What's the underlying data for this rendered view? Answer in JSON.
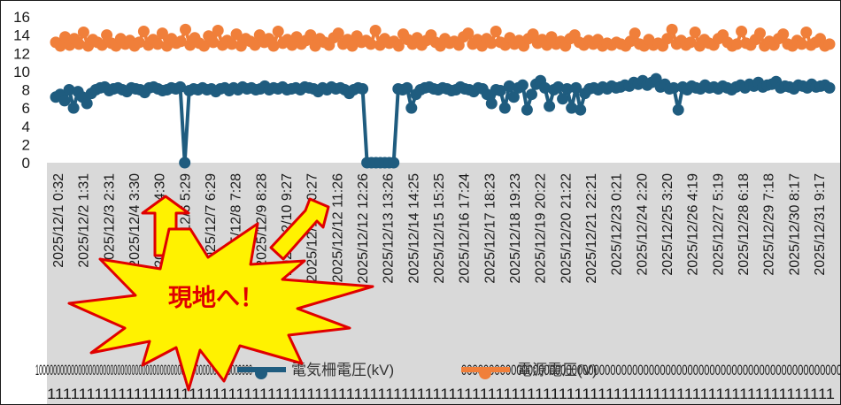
{
  "chart_data": {
    "type": "line",
    "yticks": [
      "16",
      "14",
      "12",
      "10",
      "8",
      "6",
      "4",
      "2",
      "0"
    ],
    "ylim": [
      0,
      16
    ],
    "xtick_labels": [
      "2025/12/1 0:32",
      "2025/12/2 1:31",
      "2025/12/3 2:31",
      "2025/12/4 3:30",
      "2025/12/5 4:30",
      "2025/12/6 5:29",
      "2025/12/7 6:29",
      "2025/12/8 7:28",
      "2025/12/9 8:28",
      "2025/12/10 9:27",
      "2025/12/11 10:27",
      "2025/12/12 11:26",
      "2025/12/12 12:26",
      "2025/12/13 13:26",
      "2025/12/14 14:25",
      "2025/12/15 15:25",
      "2025/12/16 17:24",
      "2025/12/17 18:23",
      "2025/12/18 19:23",
      "2025/12/19 20:22",
      "2025/12/20 21:22",
      "2025/12/21 22:21",
      "2025/12/23 0:21",
      "2025/12/24 2:20",
      "2025/12/25 3:20",
      "2025/12/26 4:19",
      "2025/12/27 5:19",
      "2025/12/28 6:18",
      "2025/12/29 7:18",
      "2025/12/30 8:17",
      "2025/12/31 9:17"
    ],
    "series": [
      {
        "name": "電気柵電圧(kV)",
        "color": "#1f5c7f",
        "values": [
          7.2,
          7.5,
          6.8,
          8.0,
          6.0,
          7.8,
          7.2,
          6.5,
          7.6,
          8.0,
          8.2,
          8.3,
          7.9,
          8.1,
          8.2,
          8.0,
          7.8,
          8.2,
          8.1,
          8.0,
          7.7,
          8.2,
          8.3,
          8.1,
          7.9,
          8.0,
          8.2,
          8.1,
          8.3,
          0.0,
          7.9,
          8.1,
          8.0,
          8.2,
          8.0,
          8.1,
          7.8,
          8.1,
          8.2,
          7.9,
          8.2,
          8.0,
          8.3,
          8.1,
          8.2,
          8.0,
          8.1,
          8.4,
          8.0,
          8.2,
          8.1,
          8.3,
          8.0,
          8.1,
          8.2,
          8.0,
          8.3,
          8.2,
          8.1,
          7.8,
          8.2,
          8.0,
          8.3,
          8.1,
          8.2,
          8.0,
          7.6,
          8.0,
          8.2,
          8.1,
          0.0,
          0.0,
          0.0,
          0.0,
          0.0,
          0.0,
          0.0,
          8.1,
          8.0,
          8.2,
          6.0,
          7.5,
          8.0,
          8.2,
          8.3,
          8.1,
          8.0,
          8.2,
          8.1,
          7.9,
          8.0,
          8.3,
          8.1,
          8.0,
          7.8,
          8.2,
          8.1,
          7.5,
          6.5,
          8.0,
          7.9,
          6.0,
          8.4,
          7.2,
          8.2,
          8.5,
          5.8,
          7.5,
          8.6,
          9.0,
          8.2,
          6.2,
          8.0,
          8.3,
          7.0,
          8.1,
          6.0,
          8.2,
          5.8,
          7.6,
          8.1,
          8.2,
          8.0,
          8.3,
          8.1,
          8.4,
          8.2,
          8.3,
          8.5,
          8.4,
          8.8,
          8.6,
          9.0,
          8.5,
          8.8,
          9.2,
          8.3,
          8.6,
          8.1,
          8.2,
          5.8,
          8.3,
          8.0,
          8.4,
          8.2,
          8.1,
          8.5,
          8.2,
          8.3,
          8.1,
          8.4,
          8.2,
          8.0,
          8.3,
          8.5,
          8.2,
          8.6,
          8.4,
          8.8,
          8.3,
          8.5,
          8.6,
          8.9,
          8.2,
          8.4,
          8.3,
          8.1,
          8.5,
          8.4,
          8.2,
          8.6,
          8.3,
          8.4,
          8.5,
          8.2
        ]
      },
      {
        "name": "電源電圧(V)",
        "color": "#f07f3a",
        "values": [
          13.2,
          12.8,
          13.8,
          12.9,
          13.6,
          13.0,
          14.3,
          12.8,
          13.5,
          13.2,
          12.9,
          14.0,
          13.1,
          12.8,
          13.6,
          13.0,
          13.4,
          12.8,
          13.2,
          14.4,
          12.9,
          13.5,
          13.0,
          14.2,
          12.8,
          13.6,
          13.1,
          13.3,
          14.6,
          12.9,
          13.7,
          13.1,
          12.8,
          13.9,
          13.2,
          14.5,
          12.9,
          13.4,
          13.0,
          14.1,
          12.8,
          13.6,
          13.3,
          12.9,
          14.0,
          13.2,
          13.6,
          12.8,
          14.4,
          13.1,
          13.5,
          12.9,
          13.8,
          13.0,
          13.4,
          14.0,
          12.8,
          13.6,
          13.2,
          12.9,
          13.7,
          14.2,
          13.0,
          13.5,
          12.8,
          13.9,
          13.2,
          13.4,
          13.0,
          14.5,
          12.9,
          13.6,
          13.1,
          13.3,
          12.8,
          14.1,
          13.5,
          13.0,
          13.7,
          12.9,
          13.4,
          14.0,
          13.2,
          12.8,
          13.6,
          13.1,
          13.3,
          12.9,
          13.8,
          14.2,
          13.0,
          13.5,
          12.8,
          13.6,
          13.1,
          14.4,
          13.2,
          12.9,
          13.7,
          13.0,
          13.4,
          12.8,
          13.6,
          14.1,
          13.1,
          13.5,
          12.9,
          13.8,
          13.0,
          13.3,
          12.8,
          13.6,
          14.0,
          13.2,
          12.9,
          13.4,
          13.0,
          13.5,
          12.8,
          13.1,
          12.9,
          13.2,
          13.0,
          12.8,
          13.3,
          14.2,
          13.0,
          12.8,
          13.5,
          12.9,
          13.1,
          12.8,
          13.6,
          14.6,
          13.0,
          13.4,
          12.9,
          13.2,
          14.3,
          12.8,
          13.5,
          13.1,
          12.9,
          13.6,
          14.0,
          13.2,
          12.8,
          13.0,
          14.4,
          13.1,
          12.9,
          13.5,
          14.2,
          12.8,
          13.3,
          12.9,
          13.6,
          14.1,
          13.0,
          12.8,
          13.4,
          13.0,
          14.3,
          12.9,
          13.2,
          13.6,
          12.8,
          13.0
        ]
      }
    ],
    "legend_noise_left": "1000000000000000000000000000000000000000000000000000000000000",
    "legend_noise_right": "000000000000000000000000000000000000000000000000000000000000000000000",
    "bottom_noise": "1111111111111111111111111111111111111111111111111111111111111111111111111111111111111111111111111111",
    "legend": [
      "電気柵電圧(kV)",
      "電源電圧(V)"
    ]
  },
  "callout": {
    "text": "現地へ！",
    "fill": "#fff200",
    "stroke": "#e00000"
  }
}
